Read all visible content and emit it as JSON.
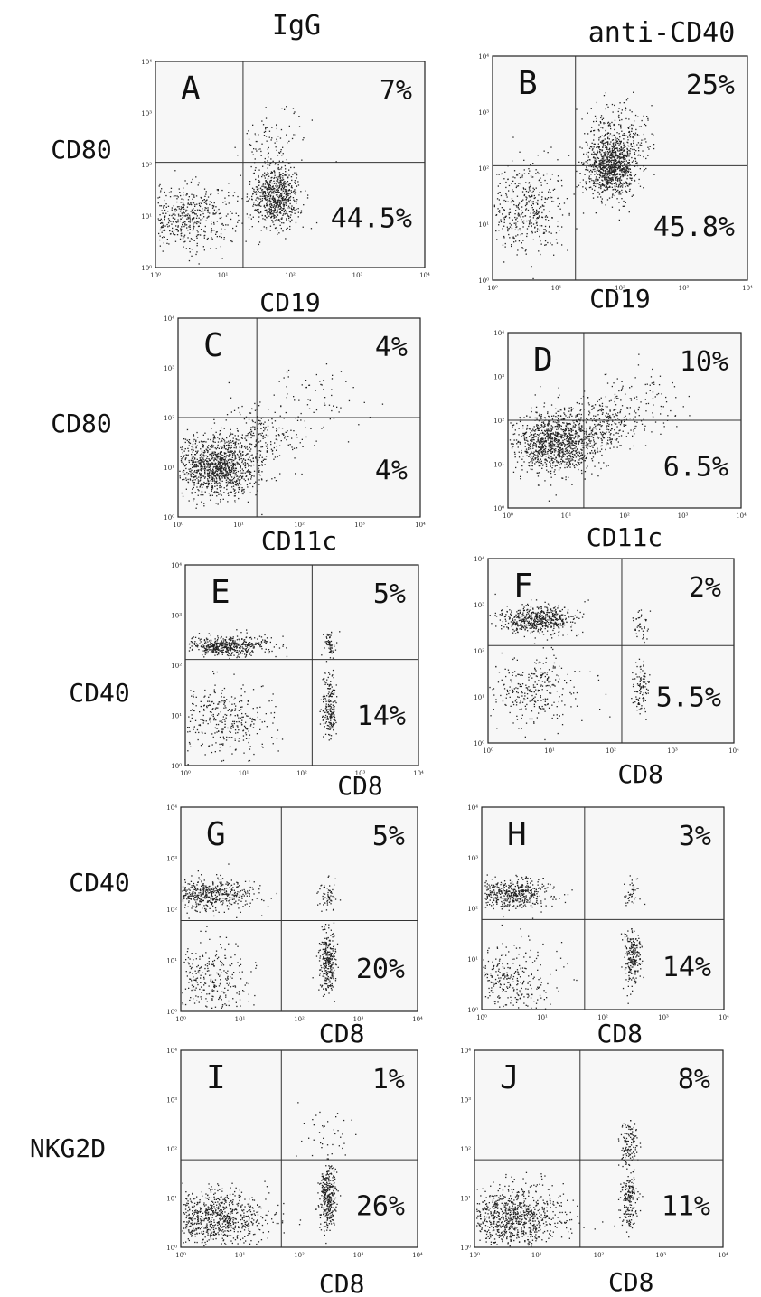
{
  "figure": {
    "column_titles": [
      "IgG",
      "anti-CD40"
    ],
    "row_labels": [
      "CD80",
      "CD80",
      "CD40",
      "CD40",
      "NKG2D"
    ]
  },
  "chart_data": [
    {
      "type": "scatter",
      "panel": "A",
      "xlabel": "CD19",
      "ylabel": "CD80",
      "xscale": "log",
      "yscale": "log",
      "xlim": [
        1,
        10000
      ],
      "ylim": [
        1,
        10000
      ],
      "ticks": [
        "10⁰",
        "10¹",
        "10²",
        "10³",
        "10⁴"
      ],
      "gate": {
        "x": 20,
        "y": 110
      },
      "quadrant_labels": [
        {
          "quadrant": "upper-right",
          "text": "7%"
        },
        {
          "quadrant": "lower-right",
          "text": "44.5%"
        }
      ],
      "populations": [
        {
          "center": [
            3,
            10
          ],
          "spread": [
            0.35,
            0.3
          ],
          "count": 500
        },
        {
          "center": [
            60,
            25
          ],
          "spread": [
            0.18,
            0.3
          ],
          "count": 700
        },
        {
          "center": [
            60,
            300
          ],
          "spread": [
            0.25,
            0.3
          ],
          "count": 90
        }
      ]
    },
    {
      "type": "scatter",
      "panel": "B",
      "xlabel": "CD19",
      "ylabel": "",
      "xscale": "log",
      "yscale": "log",
      "xlim": [
        1,
        10000
      ],
      "ylim": [
        1,
        10000
      ],
      "ticks": [
        "10⁰",
        "10¹",
        "10²",
        "10³",
        "10⁴"
      ],
      "gate": {
        "x": 20,
        "y": 110
      },
      "quadrant_labels": [
        {
          "quadrant": "upper-right",
          "text": "25%"
        },
        {
          "quadrant": "lower-right",
          "text": "45.8%"
        }
      ],
      "populations": [
        {
          "center": [
            3,
            20
          ],
          "spread": [
            0.35,
            0.4
          ],
          "count": 450
        },
        {
          "center": [
            70,
            100
          ],
          "spread": [
            0.2,
            0.25
          ],
          "count": 900
        },
        {
          "center": [
            90,
            400
          ],
          "spread": [
            0.25,
            0.3
          ],
          "count": 250
        }
      ]
    },
    {
      "type": "scatter",
      "panel": "C",
      "xlabel": "CD11c",
      "ylabel": "CD80",
      "xscale": "log",
      "yscale": "log",
      "xlim": [
        1,
        10000
      ],
      "ylim": [
        1,
        10000
      ],
      "ticks": [
        "10⁰",
        "10¹",
        "10²",
        "10³",
        "10⁴"
      ],
      "gate": {
        "x": 20,
        "y": 100
      },
      "quadrant_labels": [
        {
          "quadrant": "upper-right",
          "text": "4%"
        },
        {
          "quadrant": "lower-right",
          "text": "4%"
        }
      ],
      "populations": [
        {
          "center": [
            4,
            10
          ],
          "spread": [
            0.35,
            0.3
          ],
          "count": 1100
        },
        {
          "center": [
            20,
            40
          ],
          "spread": [
            0.35,
            0.35
          ],
          "count": 250
        },
        {
          "center": [
            200,
            200
          ],
          "spread": [
            0.4,
            0.4
          ],
          "count": 70
        }
      ]
    },
    {
      "type": "scatter",
      "panel": "D",
      "xlabel": "CD11c",
      "ylabel": "",
      "xscale": "log",
      "yscale": "log",
      "xlim": [
        1,
        10000
      ],
      "ylim": [
        1,
        10000
      ],
      "ticks": [
        "10⁰",
        "10¹",
        "10²",
        "10³",
        "10⁴"
      ],
      "gate": {
        "x": 20,
        "y": 100
      },
      "quadrant_labels": [
        {
          "quadrant": "upper-right",
          "text": "10%"
        },
        {
          "quadrant": "lower-right",
          "text": "6.5%"
        }
      ],
      "populations": [
        {
          "center": [
            6,
            30
          ],
          "spread": [
            0.35,
            0.35
          ],
          "count": 1100
        },
        {
          "center": [
            40,
            80
          ],
          "spread": [
            0.35,
            0.35
          ],
          "count": 300
        },
        {
          "center": [
            200,
            300
          ],
          "spread": [
            0.4,
            0.4
          ],
          "count": 100
        }
      ]
    },
    {
      "type": "scatter",
      "panel": "E",
      "xlabel": "CD8",
      "ylabel": "CD40",
      "xscale": "log",
      "yscale": "log",
      "xlim": [
        1,
        10000
      ],
      "ylim": [
        1,
        10000
      ],
      "ticks": [
        "10⁰",
        "10¹",
        "10²",
        "10³",
        "10⁴"
      ],
      "gate": {
        "x": 150,
        "y": 130
      },
      "quadrant_labels": [
        {
          "quadrant": "upper-right",
          "text": "5%"
        },
        {
          "quadrant": "lower-right",
          "text": "14%"
        }
      ],
      "populations": [
        {
          "center": [
            5,
            250
          ],
          "spread": [
            0.35,
            0.1
          ],
          "count": 500
        },
        {
          "center": [
            4,
            8
          ],
          "spread": [
            0.4,
            0.4
          ],
          "count": 350
        },
        {
          "center": [
            300,
            15
          ],
          "spread": [
            0.06,
            0.3
          ],
          "count": 200
        },
        {
          "center": [
            300,
            250
          ],
          "spread": [
            0.06,
            0.15
          ],
          "count": 60
        }
      ]
    },
    {
      "type": "scatter",
      "panel": "F",
      "xlabel": "CD8",
      "ylabel": "",
      "xscale": "log",
      "yscale": "log",
      "xlim": [
        1,
        10000
      ],
      "ylim": [
        1,
        10000
      ],
      "ticks": [
        "10⁰",
        "10¹",
        "10²",
        "10³",
        "10⁴"
      ],
      "gate": {
        "x": 150,
        "y": 130
      },
      "quadrant_labels": [
        {
          "quadrant": "upper-right",
          "text": "2%"
        },
        {
          "quadrant": "lower-right",
          "text": "5.5%"
        }
      ],
      "populations": [
        {
          "center": [
            6,
            500
          ],
          "spread": [
            0.3,
            0.15
          ],
          "count": 550
        },
        {
          "center": [
            5,
            15
          ],
          "spread": [
            0.4,
            0.4
          ],
          "count": 300
        },
        {
          "center": [
            300,
            15
          ],
          "spread": [
            0.06,
            0.3
          ],
          "count": 100
        },
        {
          "center": [
            300,
            400
          ],
          "spread": [
            0.06,
            0.2
          ],
          "count": 40
        }
      ]
    },
    {
      "type": "scatter",
      "panel": "G",
      "xlabel": "CD8",
      "ylabel": "CD40",
      "xscale": "log",
      "yscale": "log",
      "xlim": [
        1,
        10000
      ],
      "ylim": [
        1,
        10000
      ],
      "ticks": [
        "10⁰",
        "10¹",
        "10²",
        "10³",
        "10⁴"
      ],
      "gate": {
        "x": 50,
        "y": 60
      },
      "quadrant_labels": [
        {
          "quadrant": "upper-right",
          "text": "5%"
        },
        {
          "quadrant": "lower-right",
          "text": "20%"
        }
      ],
      "populations": [
        {
          "center": [
            3,
            200
          ],
          "spread": [
            0.35,
            0.15
          ],
          "count": 500
        },
        {
          "center": [
            3,
            4
          ],
          "spread": [
            0.35,
            0.4
          ],
          "count": 300
        },
        {
          "center": [
            300,
            10
          ],
          "spread": [
            0.07,
            0.3
          ],
          "count": 280
        },
        {
          "center": [
            300,
            200
          ],
          "spread": [
            0.07,
            0.15
          ],
          "count": 60
        }
      ]
    },
    {
      "type": "scatter",
      "panel": "H",
      "xlabel": "CD8",
      "ylabel": "",
      "xscale": "log",
      "yscale": "log",
      "xlim": [
        1,
        10000
      ],
      "ylim": [
        1,
        10000
      ],
      "ticks": [
        "10⁰",
        "10¹",
        "10²",
        "10³",
        "10⁴"
      ],
      "gate": {
        "x": 50,
        "y": 60
      },
      "quadrant_labels": [
        {
          "quadrant": "upper-right",
          "text": "3%"
        },
        {
          "quadrant": "lower-right",
          "text": "14%"
        }
      ],
      "populations": [
        {
          "center": [
            3,
            200
          ],
          "spread": [
            0.35,
            0.15
          ],
          "count": 500
        },
        {
          "center": [
            3,
            4
          ],
          "spread": [
            0.35,
            0.4
          ],
          "count": 300
        },
        {
          "center": [
            300,
            10
          ],
          "spread": [
            0.07,
            0.3
          ],
          "count": 220
        },
        {
          "center": [
            300,
            200
          ],
          "spread": [
            0.07,
            0.15
          ],
          "count": 40
        }
      ]
    },
    {
      "type": "scatter",
      "panel": "I",
      "xlabel": "CD8",
      "ylabel": "NKG2D",
      "xscale": "log",
      "yscale": "log",
      "xlim": [
        1,
        10000
      ],
      "ylim": [
        1,
        10000
      ],
      "ticks": [
        "10⁰",
        "10¹",
        "10²",
        "10³",
        "10⁴"
      ],
      "gate": {
        "x": 50,
        "y": 60
      },
      "quadrant_labels": [
        {
          "quadrant": "upper-right",
          "text": "1%"
        },
        {
          "quadrant": "lower-right",
          "text": "26%"
        }
      ],
      "populations": [
        {
          "center": [
            4,
            4
          ],
          "spread": [
            0.4,
            0.3
          ],
          "count": 800
        },
        {
          "center": [
            300,
            10
          ],
          "spread": [
            0.07,
            0.3
          ],
          "count": 330
        },
        {
          "center": [
            300,
            200
          ],
          "spread": [
            0.2,
            0.4
          ],
          "count": 40
        }
      ]
    },
    {
      "type": "scatter",
      "panel": "J",
      "xlabel": "CD8",
      "ylabel": "",
      "xscale": "log",
      "yscale": "log",
      "xlim": [
        1,
        10000
      ],
      "ylim": [
        1,
        10000
      ],
      "ticks": [
        "10⁰",
        "10¹",
        "10²",
        "10³",
        "10⁴"
      ],
      "gate": {
        "x": 50,
        "y": 60
      },
      "quadrant_labels": [
        {
          "quadrant": "upper-right",
          "text": "8%"
        },
        {
          "quadrant": "lower-right",
          "text": "11%"
        }
      ],
      "populations": [
        {
          "center": [
            4,
            4
          ],
          "spread": [
            0.4,
            0.3
          ],
          "count": 900
        },
        {
          "center": [
            300,
            10
          ],
          "spread": [
            0.07,
            0.3
          ],
          "count": 180
        },
        {
          "center": [
            300,
            120
          ],
          "spread": [
            0.08,
            0.2
          ],
          "count": 130
        }
      ]
    }
  ]
}
